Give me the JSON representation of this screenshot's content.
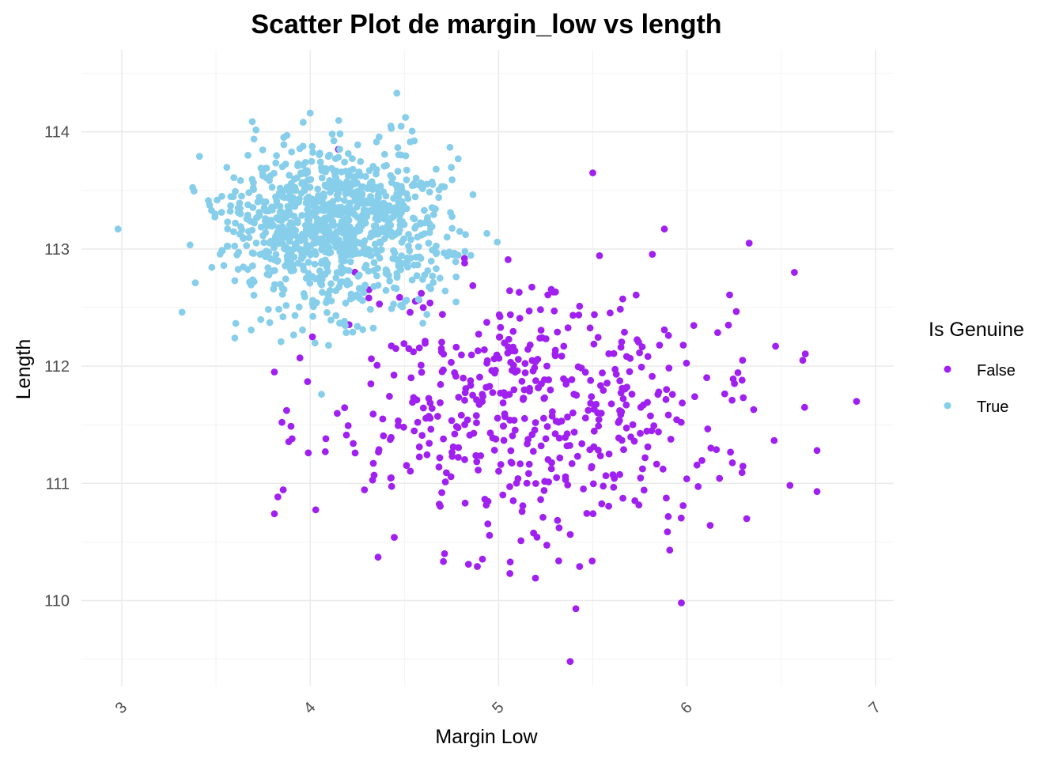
{
  "chart_data": {
    "type": "scatter",
    "title": "Scatter Plot de margin_low vs length",
    "xlabel": "Margin Low",
    "ylabel": "Length",
    "xlim": [
      2.95,
      7.1
    ],
    "ylim": [
      109.4,
      114.5
    ],
    "x_ticks": [
      3,
      4,
      5,
      6,
      7
    ],
    "y_ticks": [
      110,
      111,
      112,
      113,
      114
    ],
    "grid": true,
    "x_tick_rotation_deg": -45,
    "legend": {
      "title": "Is Genuine",
      "position": "right",
      "entries": [
        "False",
        "True"
      ]
    },
    "series": [
      {
        "name": "False",
        "color": "#a020f0",
        "generated_count": 500,
        "x_mean": 5.22,
        "x_sd": 0.55,
        "y_mean": 111.6,
        "y_sd": 0.55,
        "points": [
          [
            5.5,
            113.65
          ],
          [
            4.15,
            113.85
          ],
          [
            5.88,
            113.17
          ],
          [
            6.33,
            113.05
          ],
          [
            6.57,
            112.8
          ],
          [
            3.81,
            111.95
          ],
          [
            3.81,
            110.74
          ],
          [
            3.85,
            111.52
          ],
          [
            3.99,
            111.26
          ],
          [
            4.08,
            111.27
          ],
          [
            5.38,
            109.48
          ],
          [
            5.41,
            109.93
          ],
          [
            5.97,
            109.98
          ],
          [
            6.9,
            111.7
          ],
          [
            6.69,
            110.93
          ],
          [
            6.69,
            111.28
          ],
          [
            6.47,
            112.17
          ],
          [
            4.36,
            110.37
          ],
          [
            5.43,
            110.29
          ],
          [
            5.06,
            110.23
          ],
          [
            4.6,
            112.5
          ],
          [
            4.82,
            112.88
          ],
          [
            6.22,
            112.35
          ]
        ]
      },
      {
        "name": "True",
        "color": "#87ceeb",
        "generated_count": 1000,
        "x_mean": 4.12,
        "x_sd": 0.31,
        "y_mean": 113.18,
        "y_sd": 0.36,
        "points": [
          [
            2.98,
            113.17
          ],
          [
            4.46,
            114.33
          ],
          [
            4.0,
            114.16
          ],
          [
            4.65,
            113.55
          ],
          [
            3.6,
            112.24
          ],
          [
            3.32,
            112.46
          ],
          [
            4.06,
            111.76
          ],
          [
            4.25,
            112.34
          ]
        ]
      }
    ]
  }
}
